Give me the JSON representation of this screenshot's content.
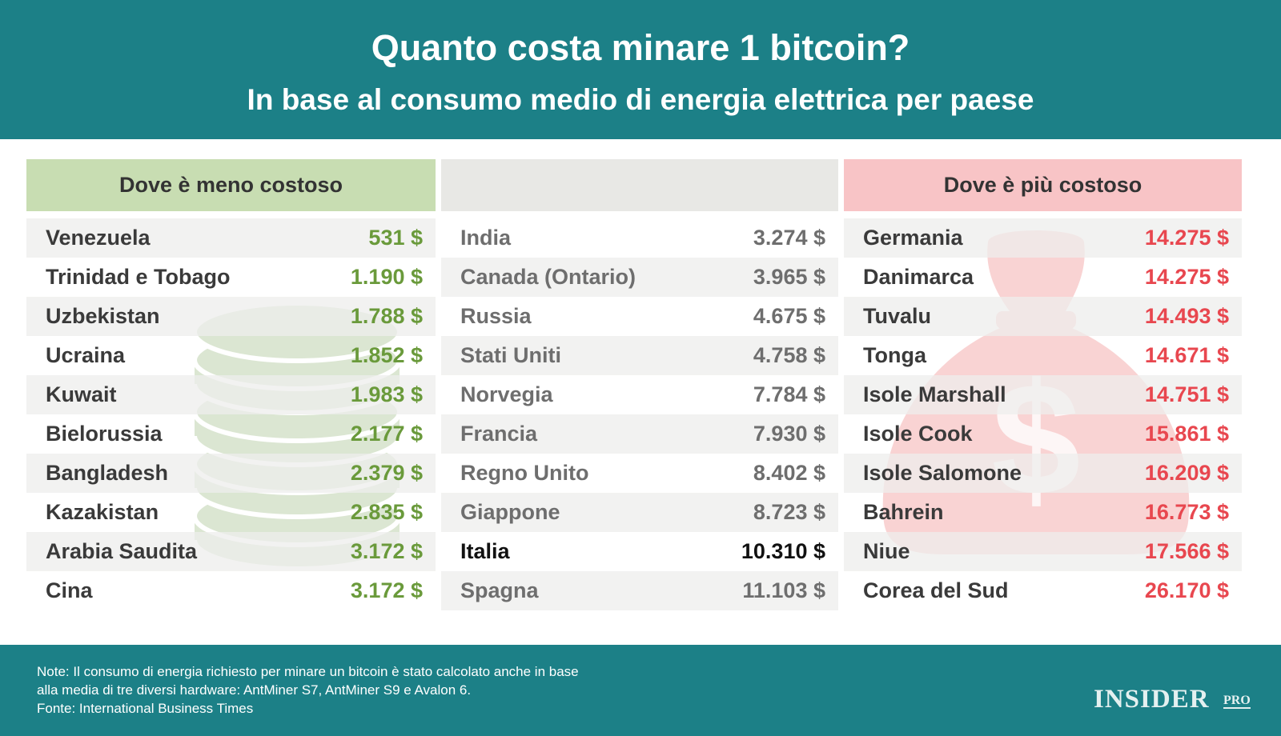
{
  "header": {
    "title": "Quanto costa minare 1 bitcoin?",
    "subtitle": "In base al consumo medio di energia elettrica per paese"
  },
  "colors": {
    "header_bg": "#1c8087",
    "cheap_header": "#c8ddb2",
    "mid_header": "#e8e8e5",
    "expensive_header": "#f8c4c6",
    "cheap_value": "#6a9a3b",
    "expensive_value": "#e8474f"
  },
  "icons": [
    "coin-stack-icon",
    "money-bag-icon"
  ],
  "chart_data": {
    "type": "table",
    "columns": [
      {
        "heading": "Dove è meno costoso",
        "rows": [
          {
            "country": "Venezuela",
            "value": "531 $"
          },
          {
            "country": "Trinidad e Tobago",
            "value": "1.190 $"
          },
          {
            "country": "Uzbekistan",
            "value": "1.788 $"
          },
          {
            "country": "Ucraina",
            "value": "1.852 $"
          },
          {
            "country": "Kuwait",
            "value": "1.983 $"
          },
          {
            "country": "Bielorussia",
            "value": "2.177 $"
          },
          {
            "country": "Bangladesh",
            "value": "2.379 $"
          },
          {
            "country": "Kazakistan",
            "value": "2.835 $"
          },
          {
            "country": "Arabia Saudita",
            "value": "3.172 $"
          },
          {
            "country": "Cina",
            "value": "3.172 $"
          }
        ]
      },
      {
        "heading": "",
        "rows": [
          {
            "country": "India",
            "value": "3.274 $"
          },
          {
            "country": "Canada (Ontario)",
            "value": "3.965 $"
          },
          {
            "country": "Russia",
            "value": "4.675 $"
          },
          {
            "country": "Stati Uniti",
            "value": "4.758 $"
          },
          {
            "country": "Norvegia",
            "value": "7.784 $"
          },
          {
            "country": "Francia",
            "value": "7.930 $"
          },
          {
            "country": "Regno Unito",
            "value": "8.402 $"
          },
          {
            "country": "Giappone",
            "value": "8.723 $"
          },
          {
            "country": "Italia",
            "value": "10.310 $",
            "highlight": true
          },
          {
            "country": "Spagna",
            "value": "11.103 $"
          }
        ]
      },
      {
        "heading": "Dove è più costoso",
        "rows": [
          {
            "country": "Germania",
            "value": "14.275 $"
          },
          {
            "country": "Danimarca",
            "value": "14.275 $"
          },
          {
            "country": "Tuvalu",
            "value": "14.493 $"
          },
          {
            "country": "Tonga",
            "value": "14.671 $"
          },
          {
            "country": "Isole Marshall",
            "value": "14.751 $"
          },
          {
            "country": "Isole Cook",
            "value": "15.861 $"
          },
          {
            "country": "Isole Salomone",
            "value": "16.209 $"
          },
          {
            "country": "Bahrein",
            "value": "16.773 $"
          },
          {
            "country": "Niue",
            "value": "17.566 $"
          },
          {
            "country": "Corea del Sud",
            "value": "26.170 $"
          }
        ]
      }
    ]
  },
  "footer": {
    "note_line1": "Note: Il consumo di energia richiesto per minare un bitcoin è stato calcolato anche in base",
    "note_line2": "alla media di tre diversi hardware: AntMiner S7, AntMiner S9 e Avalon 6.",
    "source": "Fonte: International Business Times",
    "logo": "INSIDER",
    "logo_sub": "PRO"
  }
}
